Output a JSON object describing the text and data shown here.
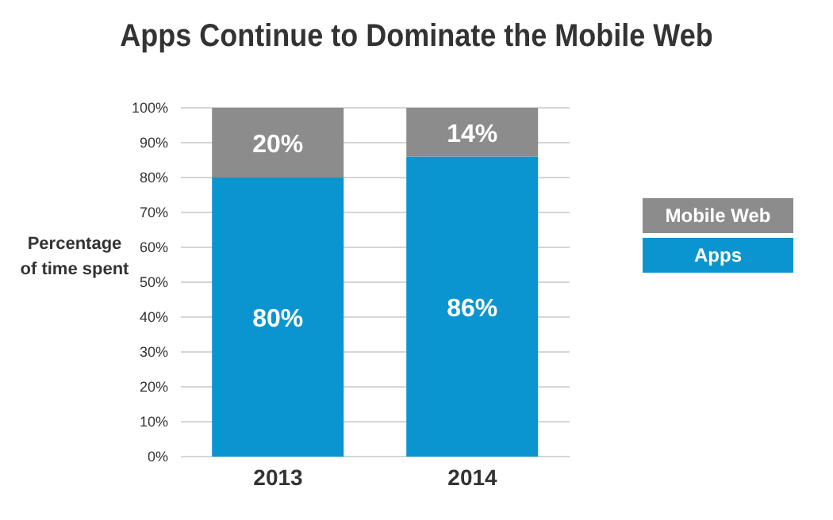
{
  "chart_data": {
    "type": "bar",
    "title": "Apps Continue to Dominate the Mobile Web",
    "ylabel": "Percentage\nof time spent",
    "categories": [
      "2013",
      "2014"
    ],
    "stacked": true,
    "series": [
      {
        "name": "Apps",
        "color": "#0a95d0",
        "values": [
          80,
          86
        ],
        "value_labels": [
          "80%",
          "86%"
        ]
      },
      {
        "name": "Mobile Web",
        "color": "#8c8c8c",
        "values": [
          20,
          14
        ],
        "value_labels": [
          "20%",
          "14%"
        ]
      }
    ],
    "ylim": [
      0,
      100
    ],
    "yticks": [
      {
        "value": 0,
        "label": "0%"
      },
      {
        "value": 10,
        "label": "10%"
      },
      {
        "value": 20,
        "label": "20%"
      },
      {
        "value": 30,
        "label": "30%"
      },
      {
        "value": 40,
        "label": "40%"
      },
      {
        "value": 50,
        "label": "50%"
      },
      {
        "value": 60,
        "label": "60%"
      },
      {
        "value": 70,
        "label": "70%"
      },
      {
        "value": 80,
        "label": "80%"
      },
      {
        "value": 90,
        "label": "90%"
      },
      {
        "value": 100,
        "label": "100%"
      }
    ],
    "grid": "y",
    "legend": "right"
  }
}
